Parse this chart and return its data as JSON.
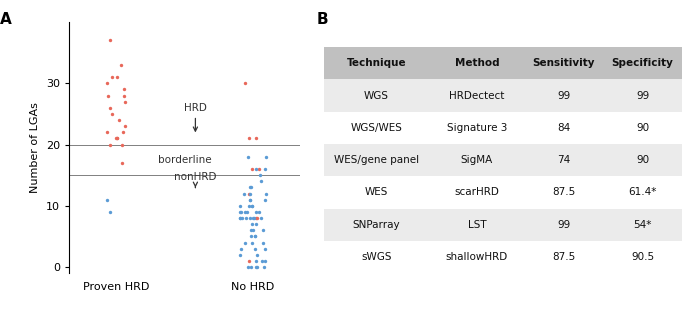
{
  "panel_a_label": "A",
  "panel_b_label": "B",
  "ylabel": "Number of LGAs",
  "xticklabels": [
    "Proven HRD",
    "No HRD"
  ],
  "hline1": 20,
  "hline2": 15,
  "hrd_label": "HRD",
  "borderline_label": "borderline",
  "nonhrd_label": "nonHRD",
  "red_color": "#e8685a",
  "blue_color": "#5b9bd5",
  "proven_hrd_red": [
    37,
    33,
    31,
    31,
    30,
    29,
    28,
    28,
    27,
    26,
    25,
    24,
    23,
    22,
    22,
    21,
    21,
    21,
    20,
    20,
    17
  ],
  "proven_hrd_blue": [
    11,
    9
  ],
  "no_hrd_red": [
    30,
    21,
    21,
    16,
    16,
    12,
    8,
    8,
    1
  ],
  "no_hrd_blue_above15": [
    18,
    18,
    16,
    16,
    15
  ],
  "no_hrd_blue_8to14": [
    14,
    13,
    13,
    12,
    12,
    12,
    11,
    11,
    11,
    10,
    10,
    10,
    10,
    9,
    9,
    9,
    9,
    9,
    9,
    8,
    8,
    8,
    8,
    8,
    8,
    8,
    8
  ],
  "no_hrd_blue_below8": [
    7,
    7,
    6,
    6,
    6,
    5,
    5,
    5,
    4,
    4,
    4,
    3,
    3,
    3,
    2,
    2,
    1,
    1,
    1,
    0,
    0,
    0,
    0,
    0
  ],
  "table_header_bg": "#c0c0c0",
  "table_row_bg_odd": "#ebebeb",
  "table_row_bg_even": "#ffffff",
  "table_header": [
    "Technique",
    "Method",
    "Sensitivity",
    "Specificity"
  ],
  "table_rows": [
    [
      "WGS",
      "HRDectect",
      "99",
      "99"
    ],
    [
      "WGS/WES",
      "Signature 3",
      "84",
      "90"
    ],
    [
      "WES/gene panel",
      "SigMA",
      "74",
      "90"
    ],
    [
      "WES",
      "scarHRD",
      "87.5",
      "61.4*"
    ],
    [
      "SNParray",
      "LST",
      "99",
      "54*"
    ],
    [
      "sWGS",
      "shallowHRD",
      "87.5",
      "90.5"
    ]
  ],
  "ylim": [
    -1,
    40
  ],
  "yticks": [
    0,
    10,
    20,
    30
  ]
}
